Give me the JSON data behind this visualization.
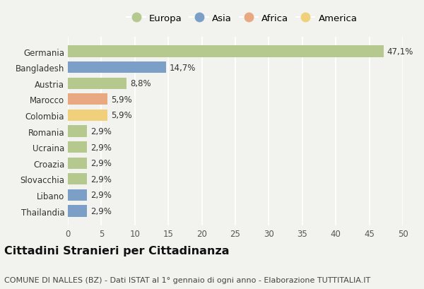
{
  "countries": [
    "Germania",
    "Bangladesh",
    "Austria",
    "Marocco",
    "Colombia",
    "Romania",
    "Ucraina",
    "Croazia",
    "Slovacchia",
    "Libano",
    "Thailandia"
  ],
  "values": [
    47.1,
    14.7,
    8.8,
    5.9,
    5.9,
    2.9,
    2.9,
    2.9,
    2.9,
    2.9,
    2.9
  ],
  "labels": [
    "47,1%",
    "14,7%",
    "8,8%",
    "5,9%",
    "5,9%",
    "2,9%",
    "2,9%",
    "2,9%",
    "2,9%",
    "2,9%",
    "2,9%"
  ],
  "continents": [
    "Europa",
    "Asia",
    "Europa",
    "Africa",
    "America",
    "Europa",
    "Europa",
    "Europa",
    "Europa",
    "Asia",
    "Asia"
  ],
  "colors": {
    "Europa": "#b5c98e",
    "Asia": "#7b9fc7",
    "Africa": "#e8a882",
    "America": "#f0d07a"
  },
  "legend_order": [
    "Europa",
    "Asia",
    "Africa",
    "America"
  ],
  "xlim": [
    0,
    50
  ],
  "xticks": [
    0,
    5,
    10,
    15,
    20,
    25,
    30,
    35,
    40,
    45,
    50
  ],
  "title": "Cittadini Stranieri per Cittadinanza",
  "subtitle": "COMUNE DI NALLES (BZ) - Dati ISTAT al 1° gennaio di ogni anno - Elaborazione TUTTITALIA.IT",
  "background_color": "#f2f2ee",
  "bar_height": 0.72,
  "title_fontsize": 11.5,
  "subtitle_fontsize": 8,
  "label_fontsize": 8.5,
  "tick_fontsize": 8.5,
  "legend_fontsize": 9.5
}
